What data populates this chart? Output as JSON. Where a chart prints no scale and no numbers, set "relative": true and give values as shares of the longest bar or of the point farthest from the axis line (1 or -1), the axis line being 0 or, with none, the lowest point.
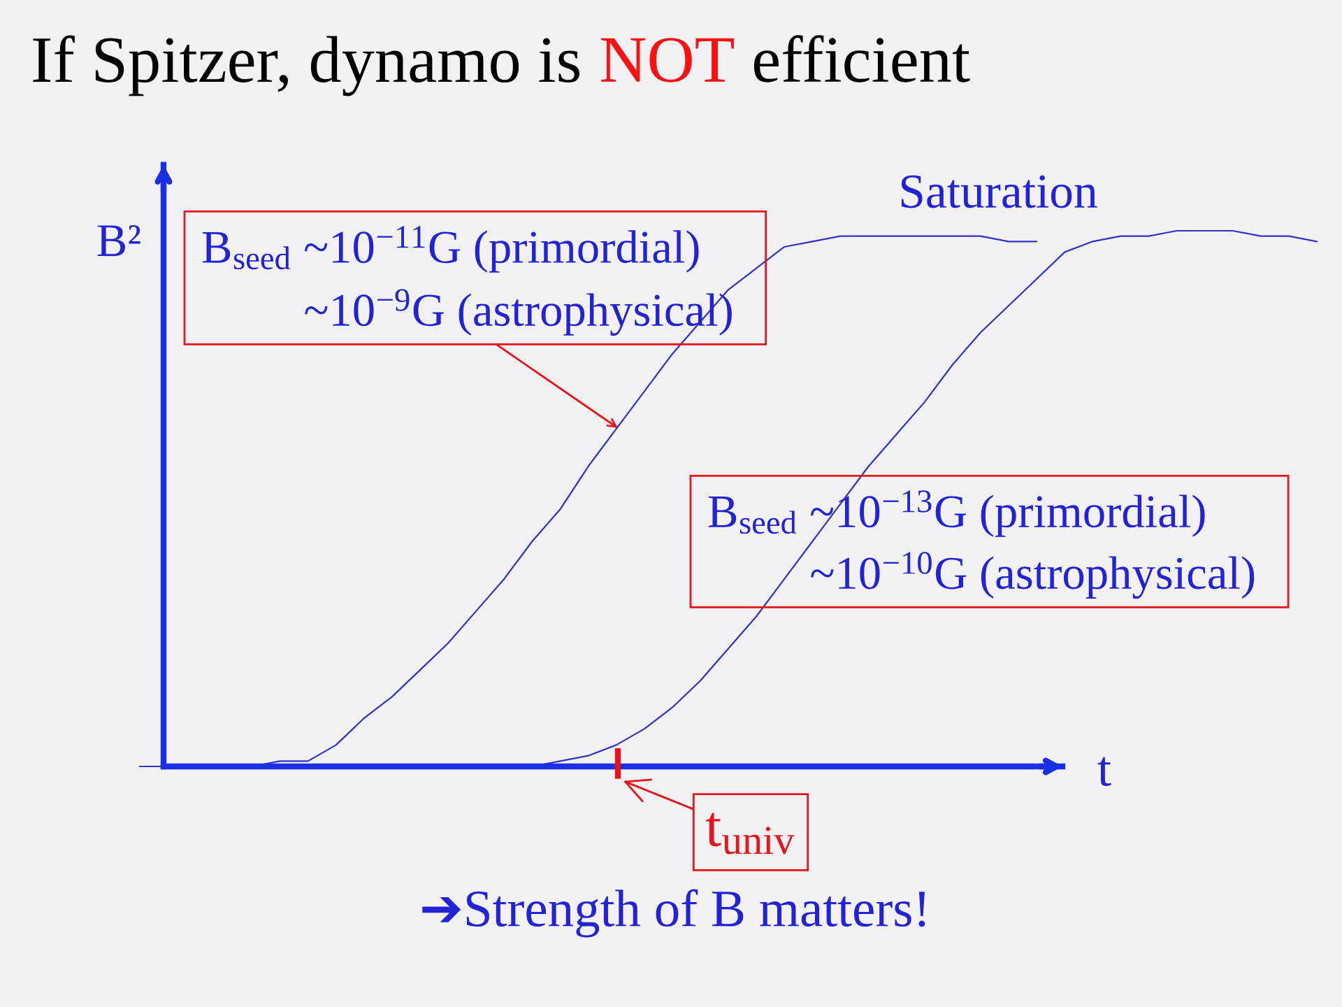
{
  "chart_data": {
    "type": "line",
    "title": "If Spitzer, dynamo is NOT efficient",
    "xlabel": "t",
    "ylabel": "B²",
    "relative": true,
    "categories": [
      null,
      null,
      null,
      null,
      null,
      null,
      null,
      null,
      null,
      null,
      null,
      null,
      null,
      null,
      null,
      null,
      null,
      null,
      null,
      null,
      null,
      null,
      null,
      null,
      null,
      null,
      null,
      null,
      null,
      null,
      null,
      null,
      null,
      null,
      null,
      null,
      null,
      null,
      null,
      null,
      null,
      null,
      null
    ],
    "series": [
      {
        "color": "#3232c8",
        "values": [
          0,
          0,
          0,
          0,
          0,
          0.01,
          0.01,
          0.04,
          0.09,
          0.13,
          0.18,
          0.23,
          0.29,
          0.35,
          0.42,
          0.48,
          0.56,
          0.63,
          0.7,
          0.77,
          0.83,
          0.89,
          0.93,
          0.97,
          0.98,
          0.99,
          0.99,
          0.99,
          0.99,
          0.99,
          0.99,
          0.98,
          0.98,
          null,
          null,
          null,
          null,
          null,
          null,
          null,
          null,
          null,
          null
        ]
      },
      {
        "color": "#3232c8",
        "values": [
          null,
          null,
          null,
          null,
          null,
          null,
          null,
          null,
          null,
          null,
          0,
          0,
          0,
          0,
          0,
          0.01,
          0.02,
          0.04,
          0.07,
          0.11,
          0.16,
          0.22,
          0.28,
          0.35,
          0.42,
          0.49,
          0.56,
          0.62,
          0.68,
          0.75,
          0.81,
          0.86,
          0.91,
          0.96,
          0.98,
          0.99,
          0.99,
          1.0,
          1.0,
          1.0,
          0.99,
          0.99,
          0.98
        ]
      }
    ],
    "annotations": [
      "Saturation",
      "B$_{seed}$ ~10$^{−11}$G (primordial)\n~10$^{−9}$G (astrophysical)",
      "B$_{seed}$ ~10$^{−13}$G (primordial)\n~10$^{−10}$G (astrophysical)",
      "t$_{univ}$",
      "➔Strength of B matters!"
    ]
  }
}
